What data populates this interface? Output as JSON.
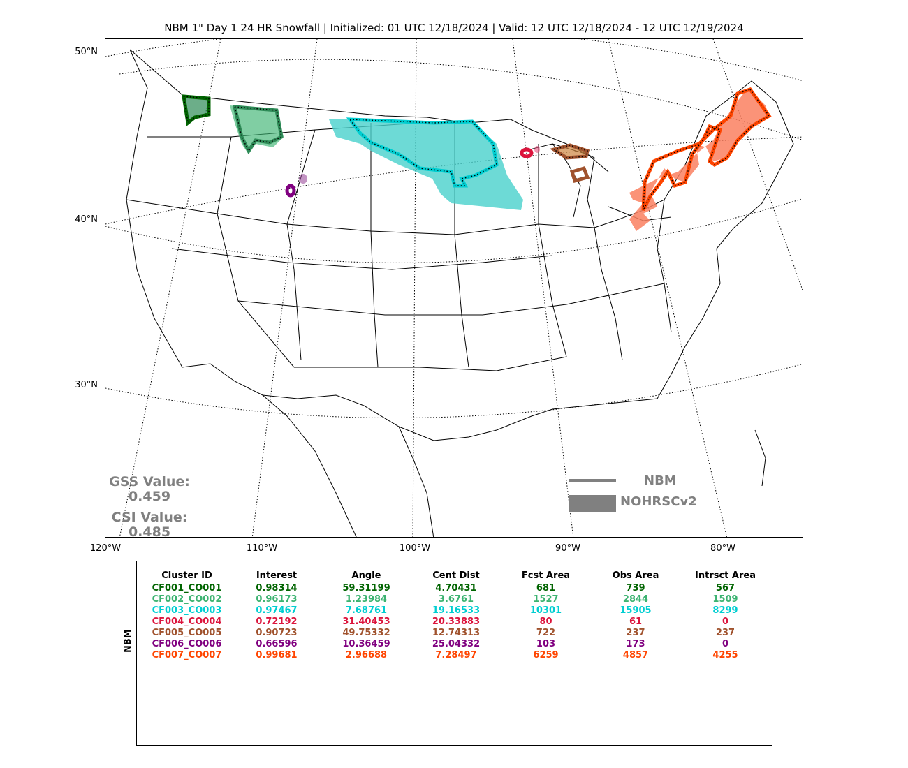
{
  "title": "NBM 1\" Day 1 24 HR Snowfall | Initialized: 01 UTC 12/18/2024 | Valid: 12 UTC 12/18/2024 - 12 UTC 12/19/2024",
  "lat_labels": [
    "50°N",
    "40°N",
    "30°N"
  ],
  "lon_labels": [
    "120°W",
    "110°W",
    "100°W",
    "90°W",
    "80°W"
  ],
  "gss": {
    "label": "GSS Value:",
    "value": "0.459"
  },
  "csi": {
    "label": "CSI Value:",
    "value": "0.485"
  },
  "legend": {
    "forecast": "NBM",
    "observed": "NOHRSCv2",
    "color": "#808080"
  },
  "table": {
    "side_label": "NBM",
    "headers": [
      "Cluster ID",
      "Interest",
      "Angle",
      "Cent Dist",
      "Fcst Area",
      "Obs Area",
      "Intrsct Area"
    ],
    "rows": [
      {
        "color": "#006400",
        "cells": [
          "CF001_CO001",
          "0.98314",
          "59.31199",
          "4.70431",
          "681",
          "739",
          "567"
        ]
      },
      {
        "color": "#3cb371",
        "cells": [
          "CF002_CO002",
          "0.96173",
          "1.23984",
          "3.6761",
          "1527",
          "2844",
          "1509"
        ]
      },
      {
        "color": "#00ced1",
        "cells": [
          "CF003_CO003",
          "0.97467",
          "7.68761",
          "19.16533",
          "10301",
          "15905",
          "8299"
        ]
      },
      {
        "color": "#dc143c",
        "cells": [
          "CF004_CO004",
          "0.72192",
          "31.40453",
          "20.33883",
          "80",
          "61",
          "0"
        ]
      },
      {
        "color": "#a0522d",
        "cells": [
          "CF005_CO005",
          "0.90723",
          "49.75332",
          "12.74313",
          "722",
          "237",
          "237"
        ]
      },
      {
        "color": "#800080",
        "cells": [
          "CF006_CO006",
          "0.66596",
          "10.36459",
          "25.04332",
          "103",
          "173",
          "0"
        ]
      },
      {
        "color": "#ff4500",
        "cells": [
          "CF007_CO007",
          "0.99681",
          "2.96688",
          "7.28497",
          "6259",
          "4857",
          "4255"
        ]
      }
    ]
  }
}
